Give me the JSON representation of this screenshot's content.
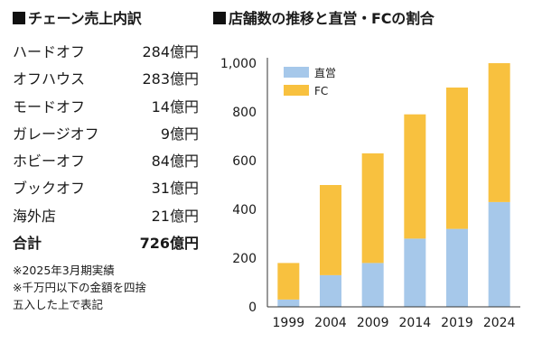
{
  "breakdown": {
    "title": "チェーン売上内訳",
    "rows": [
      {
        "name": "ハードオフ",
        "value": "284億円"
      },
      {
        "name": "オフハウス",
        "value": "283億円"
      },
      {
        "name": "モードオフ",
        "value": "14億円"
      },
      {
        "name": "ガレージオフ",
        "value": "9億円"
      },
      {
        "name": "ホビーオフ",
        "value": "84億円"
      },
      {
        "name": "ブックオフ",
        "value": "31億円"
      },
      {
        "name": "海外店",
        "value": "21億円"
      }
    ],
    "total": {
      "name": "合計",
      "value": "726億円"
    },
    "notes": [
      "※2025年3月期実績",
      "※千万円以下の金額を四捨",
      "五入した上で表記"
    ]
  },
  "chart_data": {
    "type": "bar",
    "stacked": true,
    "title": "店舗数の推移と直営・FCの割合",
    "categories": [
      "1999",
      "2004",
      "2009",
      "2014",
      "2019",
      "2024"
    ],
    "series": [
      {
        "name": "直営",
        "values": [
          30,
          130,
          180,
          280,
          320,
          430
        ],
        "color": "#a6c8ea"
      },
      {
        "name": "FC",
        "values": [
          150,
          370,
          450,
          510,
          580,
          570
        ],
        "color": "#f8c13f"
      }
    ],
    "ylim": [
      0,
      1000
    ],
    "yticks": [
      "0",
      "200",
      "400",
      "600",
      "800",
      "1,000"
    ],
    "ytick_values": [
      0,
      200,
      400,
      600,
      800,
      1000
    ],
    "grid": false,
    "legend": "top-left"
  }
}
